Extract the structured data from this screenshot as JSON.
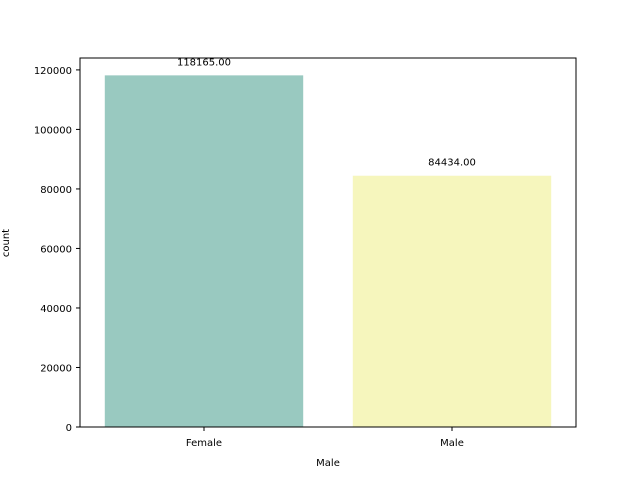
{
  "chart_data": {
    "type": "bar",
    "categories": [
      "Female",
      "Male"
    ],
    "values": [
      118165.0,
      84434.0
    ],
    "value_labels": [
      "118165.00",
      "84434.00"
    ],
    "colors": [
      "#99c9c0",
      "#f6f6bd"
    ],
    "title": "",
    "xlabel": "Male",
    "ylabel": "count",
    "ylim": [
      0,
      124000
    ],
    "yticks": [
      0,
      20000,
      40000,
      60000,
      80000,
      100000,
      120000
    ],
    "grid": false,
    "legend": false
  }
}
